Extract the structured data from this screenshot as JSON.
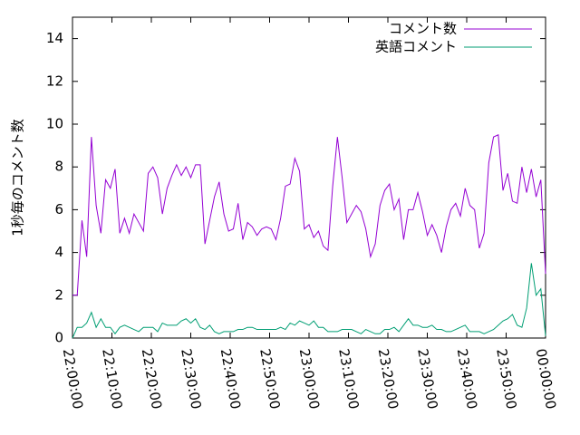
{
  "chart_data": {
    "type": "line",
    "y_label": "1秒毎のコメント数",
    "x": [
      0,
      1.2,
      2.4,
      3.6,
      4.8,
      6,
      7.2,
      8.4,
      9.6,
      10.8,
      12,
      13.2,
      14.4,
      15.6,
      16.8,
      18,
      19.2,
      20.4,
      21.6,
      22.8,
      24,
      25.2,
      26.4,
      27.6,
      28.8,
      30,
      31.2,
      32.4,
      33.6,
      34.8,
      36,
      37.2,
      38.4,
      39.6,
      40.8,
      42,
      43.2,
      44.4,
      45.6,
      46.8,
      48,
      49.2,
      50.4,
      51.6,
      52.8,
      54,
      55.2,
      56.4,
      57.6,
      58.8,
      60,
      61.2,
      62.4,
      63.6,
      64.8,
      66,
      67.2,
      68.4,
      69.6,
      70.8,
      72,
      73.2,
      74.4,
      75.6,
      76.8,
      78,
      79.2,
      80.4,
      81.6,
      82.8,
      84,
      85.2,
      86.4,
      87.6,
      88.8,
      90,
      91.2,
      92.4,
      93.6,
      94.8,
      96,
      97.2,
      98.4,
      99.6,
      100.8,
      102,
      103.2,
      104.4,
      105.6,
      106.8,
      108,
      109.2,
      110.4,
      111.6,
      112.8,
      114,
      115.2,
      116.4,
      117.6,
      118.8,
      120
    ],
    "series": [
      {
        "name": "コメント数",
        "color": "#9400d3",
        "values": [
          2.0,
          2.0,
          5.5,
          3.8,
          9.4,
          6.2,
          4.9,
          7.4,
          7.0,
          7.9,
          4.9,
          5.6,
          4.9,
          5.8,
          5.4,
          5.0,
          7.7,
          8.0,
          7.5,
          5.8,
          7.0,
          7.6,
          8.1,
          7.6,
          8.0,
          7.5,
          8.1,
          8.1,
          4.4,
          5.5,
          6.6,
          7.3,
          5.8,
          5.0,
          5.1,
          6.3,
          4.6,
          5.4,
          5.2,
          4.8,
          5.1,
          5.2,
          5.1,
          4.6,
          5.6,
          7.1,
          7.2,
          8.4,
          7.8,
          5.1,
          5.3,
          4.7,
          5.0,
          4.3,
          4.1,
          7.1,
          9.4,
          7.5,
          5.4,
          5.8,
          6.2,
          5.9,
          5.1,
          3.8,
          4.4,
          6.2,
          6.9,
          7.2,
          6.0,
          6.5,
          4.6,
          6.0,
          6.0,
          6.8,
          5.9,
          4.8,
          5.3,
          4.8,
          4.0,
          5.2,
          6.0,
          6.3,
          5.7,
          7.0,
          6.2,
          6.0,
          4.2,
          4.9,
          8.2,
          9.4,
          9.5,
          6.9,
          7.7,
          6.4,
          6.3,
          8.0,
          6.8,
          7.9,
          6.6,
          7.4,
          3.0
        ]
      },
      {
        "name": "英語コメント",
        "color": "#009e73",
        "values": [
          0.0,
          0.5,
          0.5,
          0.7,
          1.2,
          0.5,
          0.9,
          0.5,
          0.5,
          0.2,
          0.5,
          0.6,
          0.5,
          0.4,
          0.3,
          0.5,
          0.5,
          0.5,
          0.3,
          0.7,
          0.6,
          0.6,
          0.6,
          0.8,
          0.9,
          0.7,
          0.9,
          0.5,
          0.4,
          0.6,
          0.3,
          0.2,
          0.3,
          0.3,
          0.3,
          0.4,
          0.4,
          0.5,
          0.5,
          0.4,
          0.4,
          0.4,
          0.4,
          0.4,
          0.5,
          0.4,
          0.7,
          0.6,
          0.8,
          0.7,
          0.6,
          0.8,
          0.5,
          0.5,
          0.3,
          0.3,
          0.3,
          0.4,
          0.4,
          0.4,
          0.3,
          0.2,
          0.4,
          0.3,
          0.2,
          0.2,
          0.4,
          0.4,
          0.5,
          0.3,
          0.6,
          0.9,
          0.6,
          0.6,
          0.5,
          0.5,
          0.6,
          0.4,
          0.4,
          0.3,
          0.3,
          0.4,
          0.5,
          0.6,
          0.3,
          0.3,
          0.3,
          0.2,
          0.3,
          0.4,
          0.6,
          0.8,
          0.9,
          1.1,
          0.6,
          0.5,
          1.4,
          3.5,
          2.0,
          2.3,
          0.1
        ]
      }
    ],
    "xlim": [
      0,
      120
    ],
    "xticks": [
      {
        "value": 0,
        "label": "22:00:00"
      },
      {
        "value": 10,
        "label": "22:10:00"
      },
      {
        "value": 20,
        "label": "22:20:00"
      },
      {
        "value": 30,
        "label": "22:30:00"
      },
      {
        "value": 40,
        "label": "22:40:00"
      },
      {
        "value": 50,
        "label": "22:50:00"
      },
      {
        "value": 60,
        "label": "23:00:00"
      },
      {
        "value": 70,
        "label": "23:10:00"
      },
      {
        "value": 80,
        "label": "23:20:00"
      },
      {
        "value": 90,
        "label": "23:30:00"
      },
      {
        "value": 100,
        "label": "23:40:00"
      },
      {
        "value": 110,
        "label": "23:50:00"
      },
      {
        "value": 120,
        "label": "00:00:00"
      }
    ],
    "ylim": [
      0,
      15
    ],
    "yticks": [
      0,
      2,
      4,
      6,
      8,
      10,
      12,
      14
    ],
    "legend": "top right"
  }
}
